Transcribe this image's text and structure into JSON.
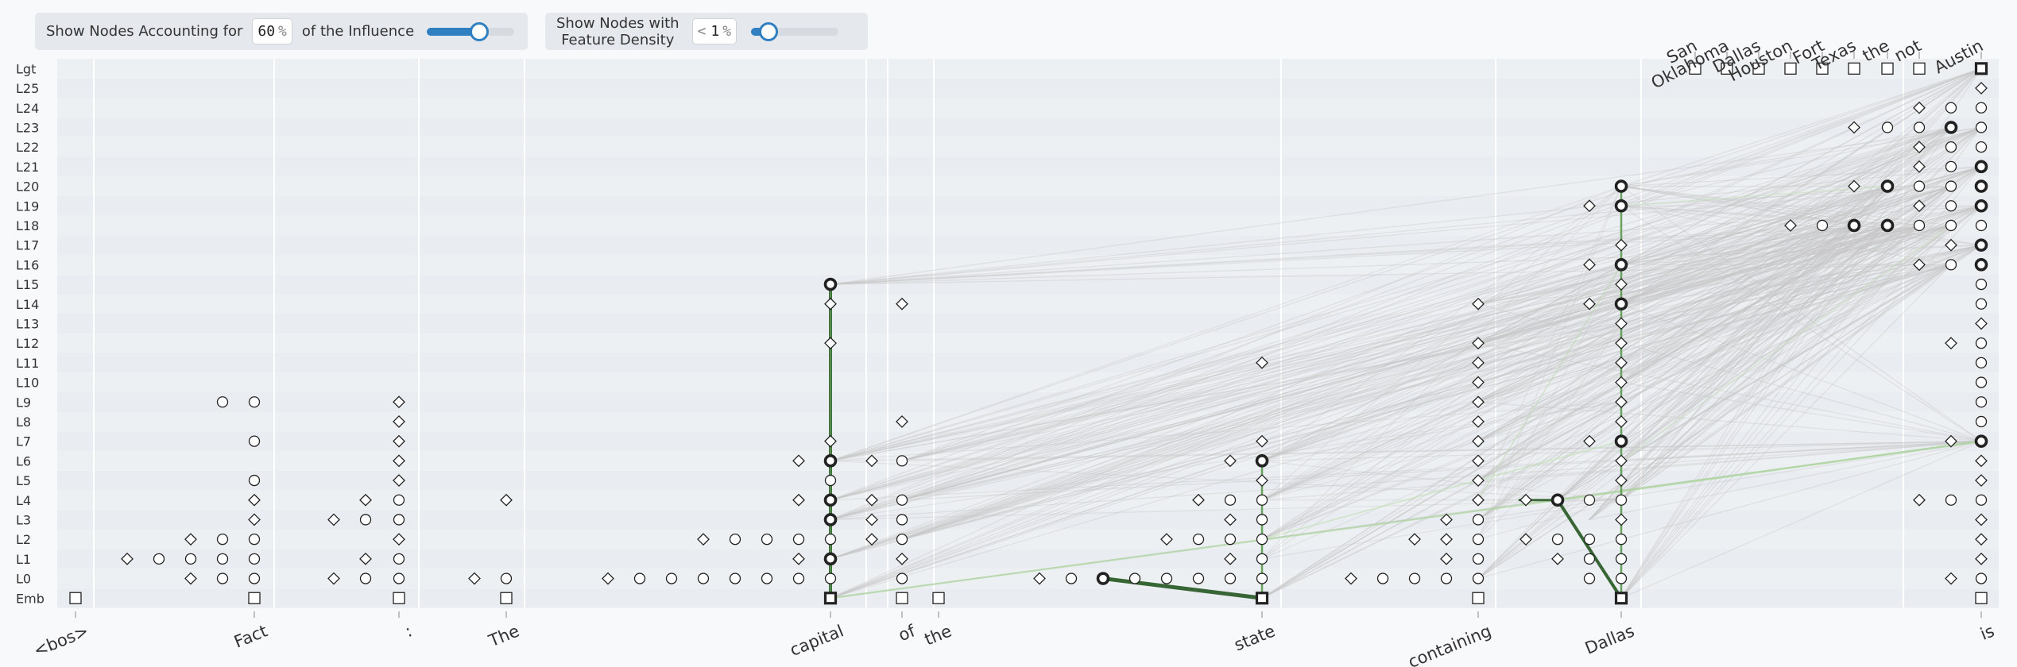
{
  "controls": {
    "influence": {
      "label_before": "Show Nodes Accounting for",
      "value": "60",
      "unit": "%",
      "label_after": "of the Influence",
      "slider_fraction": 0.6
    },
    "density": {
      "label_line1": "Show Nodes with",
      "label_line2": "Feature Density",
      "prefix": "<",
      "value": "1",
      "unit": "%",
      "slider_fraction": 0.2
    }
  },
  "layers": [
    "Lgt",
    "L25",
    "L24",
    "L23",
    "L22",
    "L21",
    "L20",
    "L19",
    "L18",
    "L17",
    "L16",
    "L15",
    "L14",
    "L13",
    "L12",
    "L11",
    "L10",
    "L9",
    "L8",
    "L7",
    "L6",
    "L5",
    "L4",
    "L3",
    "L2",
    "L1",
    "L0",
    "Emb"
  ],
  "tokens": [
    {
      "id": "bos",
      "text": "<bos>"
    },
    {
      "id": "fact",
      "text": "Fact"
    },
    {
      "id": "colon",
      "text": ":"
    },
    {
      "id": "the1",
      "text": "The"
    },
    {
      "id": "capital",
      "text": "capital"
    },
    {
      "id": "of",
      "text": "of"
    },
    {
      "id": "the2",
      "text": "the"
    },
    {
      "id": "state",
      "text": "state"
    },
    {
      "id": "containing",
      "text": "containing"
    },
    {
      "id": "dallas",
      "text": "Dallas"
    },
    {
      "id": "is",
      "text": "is"
    }
  ],
  "logits": [
    "San",
    "Oklahoma",
    "Dallas",
    "Houston",
    "Fort",
    "Texas",
    "the",
    "not",
    "Austin"
  ],
  "colors": {
    "edge_gray": "#cfcfcf",
    "edge_green_light": "#b7dca8",
    "edge_green_dark": "#2d5e2a",
    "row_alt": "#eceef2",
    "column_line": "#ffffff"
  },
  "icons": {
    "embedding": "square-icon",
    "feature": "circle-icon",
    "error": "diamond-icon",
    "logit": "square-icon"
  }
}
